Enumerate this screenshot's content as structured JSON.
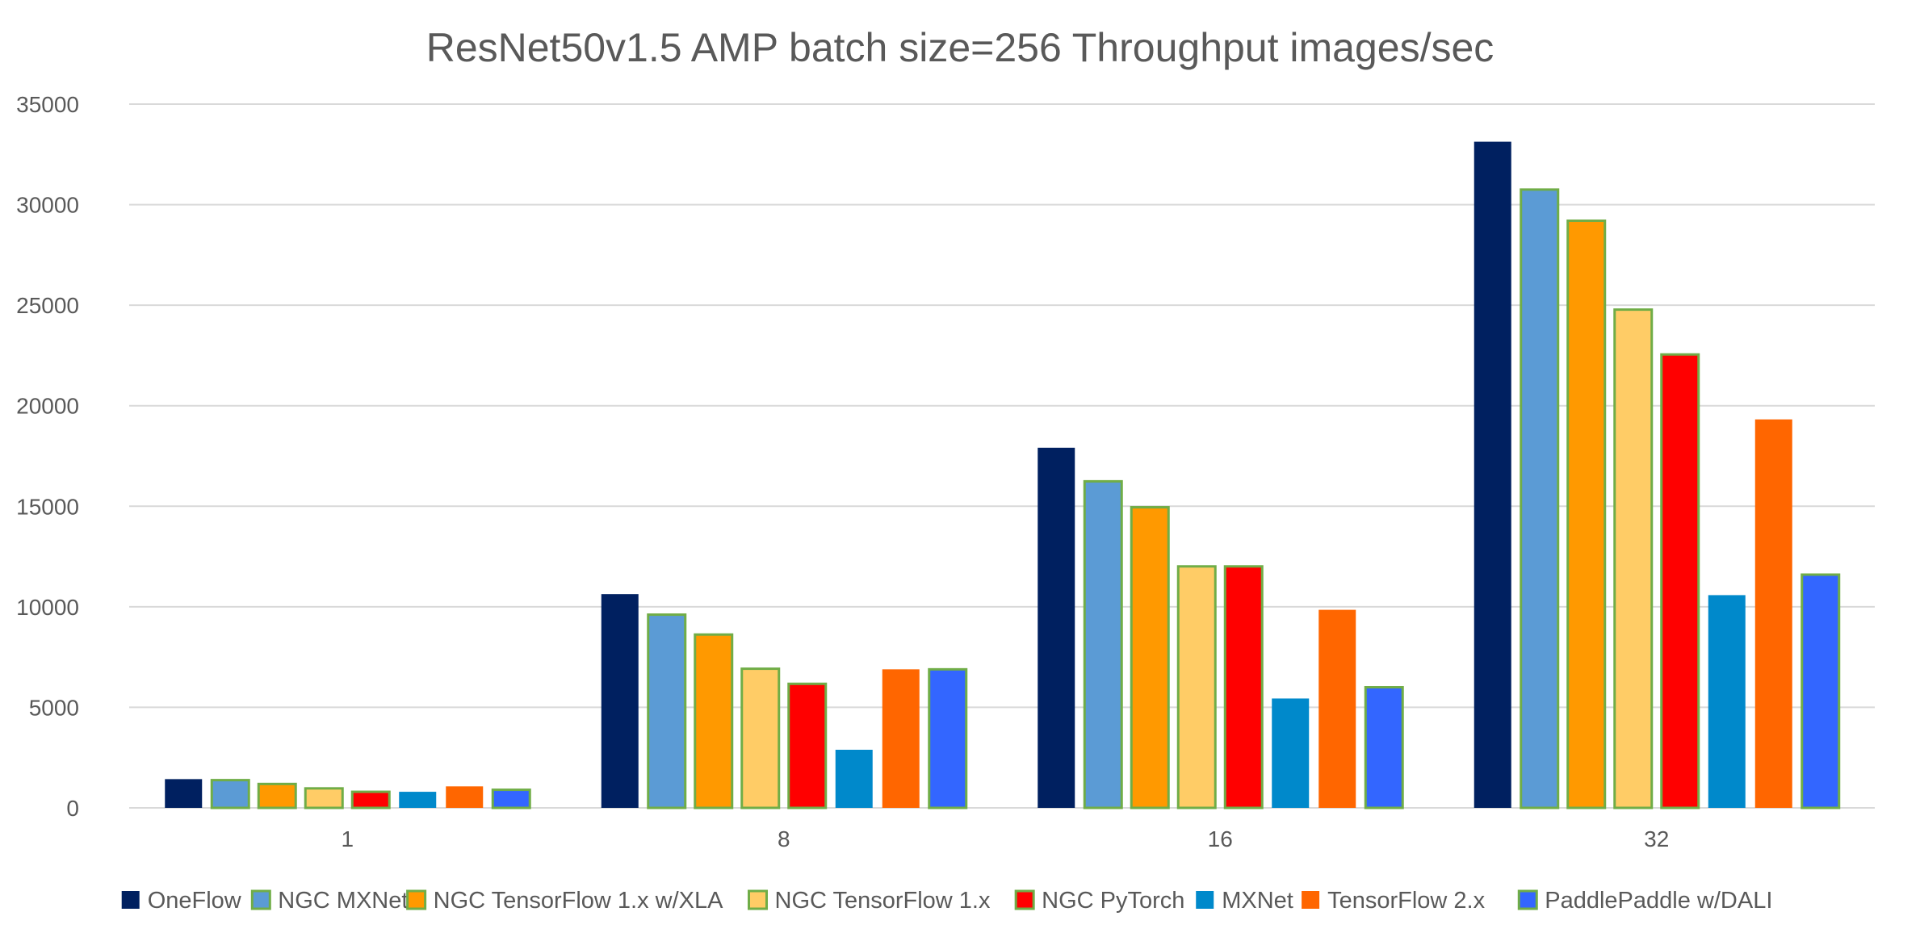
{
  "chart_data": {
    "type": "bar",
    "title": "ResNet50v1.5 AMP batch size=256 Throughput images/sec",
    "xlabel": "",
    "ylabel": "",
    "ylim": [
      0,
      35000
    ],
    "yticks": [
      "0",
      "5000",
      "10000",
      "15000",
      "20000",
      "25000",
      "30000",
      "35000"
    ],
    "grid": true,
    "legend_position": "bottom",
    "categories": [
      "1",
      "8",
      "16",
      "32"
    ],
    "series": [
      {
        "name": "OneFlow",
        "color": "#002060",
        "outline": false,
        "values": [
          1430,
          10630,
          17910,
          33130
        ]
      },
      {
        "name": "NGC MXNet",
        "color": "#5b9bd5",
        "outline": true,
        "values": [
          1380,
          9610,
          16240,
          30750
        ]
      },
      {
        "name": "NGC TensorFlow 1.x w/XLA",
        "color": "#ff9900",
        "outline": true,
        "values": [
          1190,
          8620,
          14950,
          29200
        ]
      },
      {
        "name": "NGC TensorFlow 1.x",
        "color": "#ffcc66",
        "outline": true,
        "values": [
          970,
          6920,
          12010,
          24780
        ]
      },
      {
        "name": "NGC PyTorch",
        "color": "#ff0000",
        "outline": true,
        "values": [
          800,
          6170,
          12010,
          22550
        ]
      },
      {
        "name": "MXNet",
        "color": "#0089cb",
        "outline": false,
        "values": [
          800,
          2890,
          5440,
          10580
        ]
      },
      {
        "name": "TensorFlow 2.x",
        "color": "#ff6600",
        "outline": false,
        "values": [
          1070,
          6890,
          9850,
          19320
        ]
      },
      {
        "name": "PaddlePaddle w/DALI",
        "color": "#3366ff",
        "outline": true,
        "values": [
          900,
          6890,
          6000,
          11600
        ]
      }
    ],
    "outline_color": "#70ad47",
    "gridline_color": "#d9d9d9"
  }
}
